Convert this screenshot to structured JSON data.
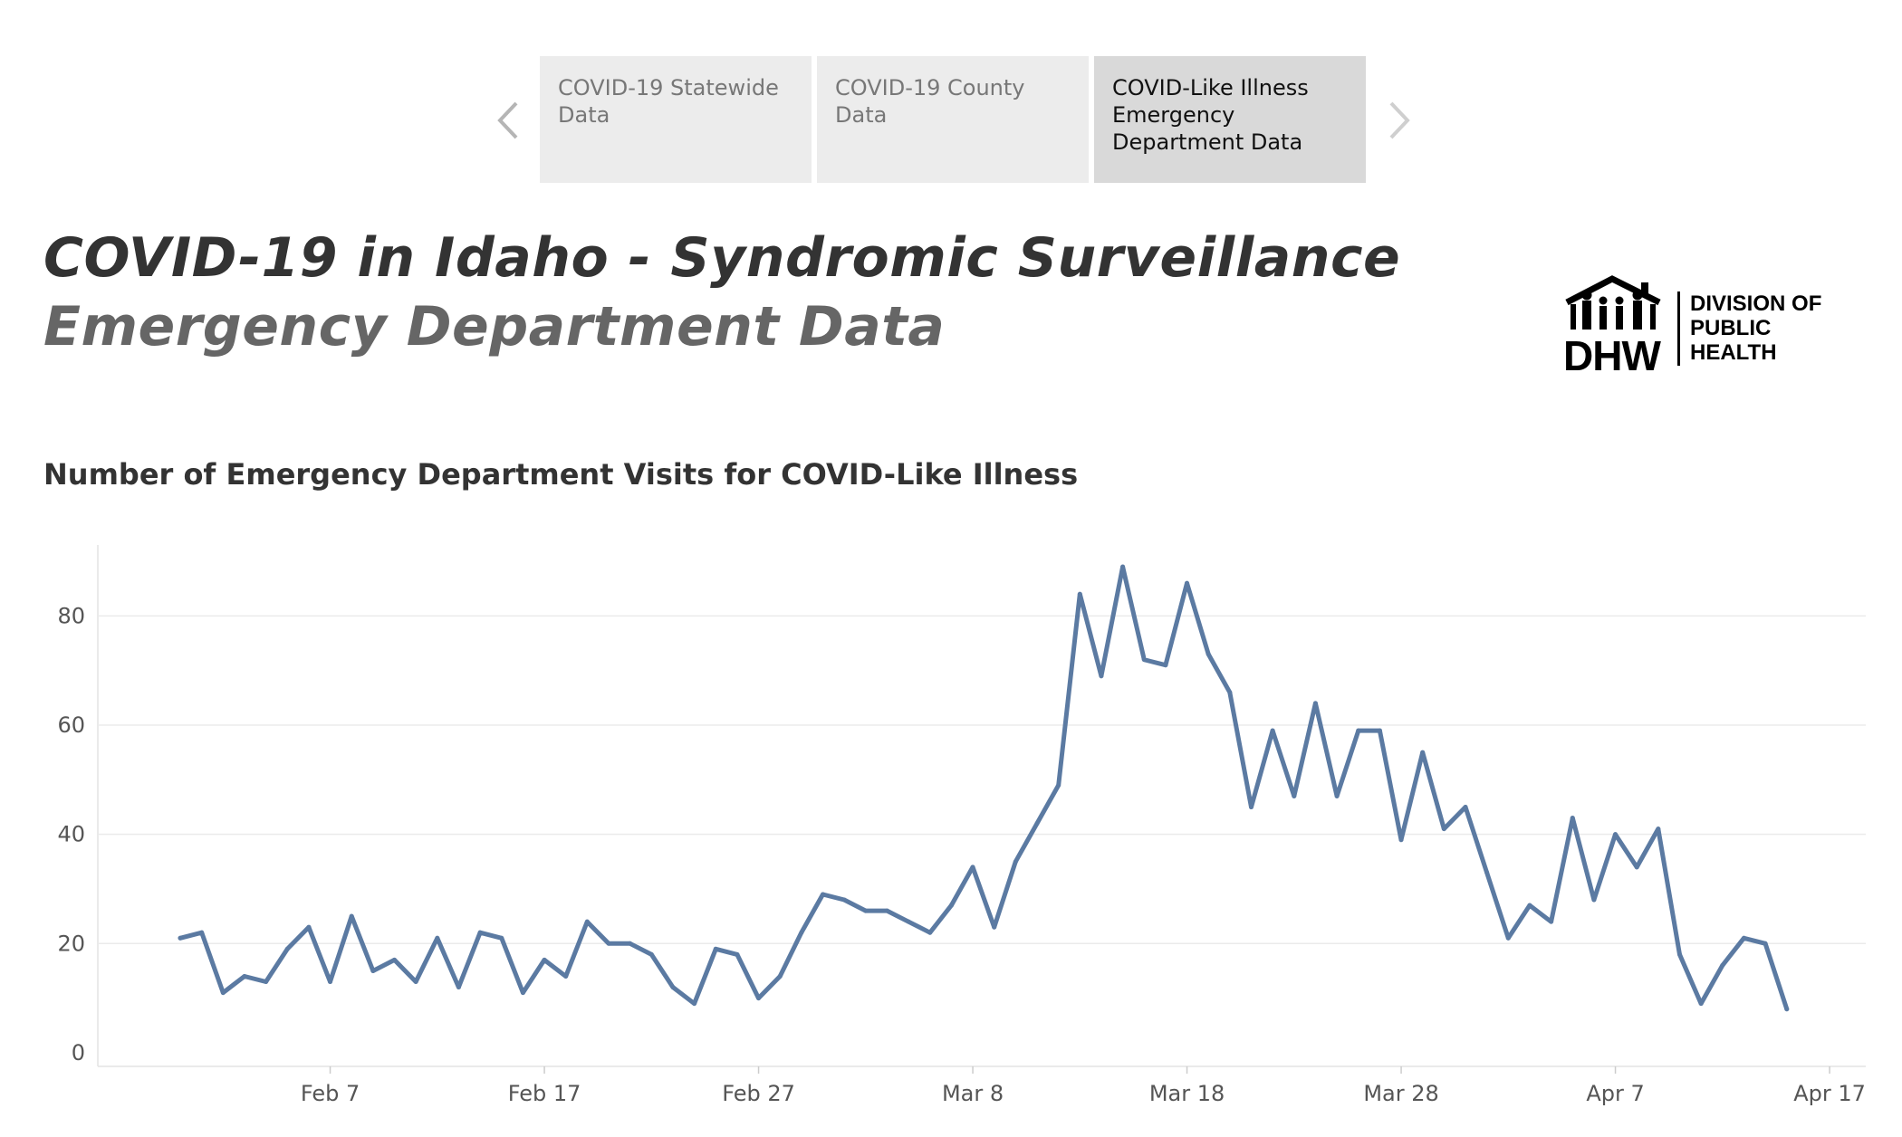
{
  "tabs": [
    {
      "label": "COVID-19 Statewide Data",
      "active": false
    },
    {
      "label": "COVID-19 County Data",
      "active": false
    },
    {
      "label": "COVID-Like Illness Emergency Department Data",
      "active": true
    }
  ],
  "nav": {
    "prev_icon": "chevron-left-icon",
    "next_icon": "chevron-right-icon"
  },
  "header": {
    "title": "COVID-19 in Idaho - Syndromic Surveillance",
    "subtitle": "Emergency Department Data"
  },
  "logo": {
    "mark": "DHW",
    "text_lines": [
      "DIVISION OF",
      "PUBLIC",
      "HEALTH"
    ]
  },
  "colors": {
    "line": "#5b7aa2",
    "grid": "#ebebeb",
    "active_tab": "#d9d9d9",
    "tab": "#ececec"
  },
  "chart_data": {
    "type": "line",
    "title": "Number of Emergency Department Visits for COVID-Like Illness",
    "xlabel": "",
    "ylabel": "",
    "x_start": "2020-02-01",
    "y_ticks": [
      0,
      20,
      40,
      60,
      80
    ],
    "ylim": [
      -2.5,
      93
    ],
    "x_ticks": [
      "Feb 7",
      "Feb 17",
      "Feb 27",
      "Mar 8",
      "Mar 18",
      "Mar 28",
      "Apr 7",
      "Apr 17"
    ],
    "grid": true,
    "legend": "none",
    "series": [
      {
        "values": [
          21,
          22,
          11,
          14,
          13,
          19,
          23,
          13,
          25,
          15,
          17,
          13,
          21,
          12,
          22,
          21,
          11,
          17,
          14,
          24,
          20,
          20,
          18,
          12,
          9,
          19,
          18,
          10,
          14,
          22,
          29,
          28,
          26,
          26,
          24,
          22,
          27,
          34,
          23,
          35,
          42,
          49,
          84,
          69,
          89,
          72,
          71,
          86,
          73,
          66,
          45,
          59,
          47,
          64,
          47,
          59,
          59,
          39,
          55,
          41,
          45,
          33,
          21,
          27,
          24,
          43,
          28,
          40,
          34,
          41,
          18,
          9,
          16,
          21,
          20,
          8
        ]
      }
    ]
  }
}
